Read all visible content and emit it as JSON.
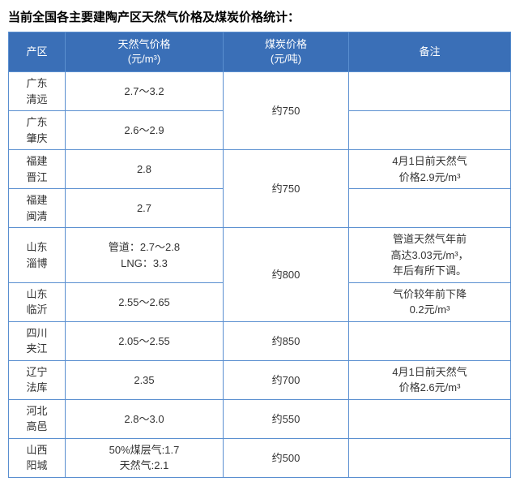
{
  "title": "当前全国各主要建陶产区天然气价格及煤炭价格统计：",
  "columns": {
    "region": "产区",
    "gas_l1": "天然气价格",
    "gas_l2": "(元/m³)",
    "coal_l1": "煤炭价格",
    "coal_l2": "(元/吨)",
    "note": "备注"
  },
  "header_bg": "#3a6fb7",
  "rows": {
    "r1_region_l1": "广东",
    "r1_region_l2": "清远",
    "r1_gas": "2.7～3.2",
    "r1_coal": "约750",
    "r1_note": "",
    "r2_region_l1": "广东",
    "r2_region_l2": "肇庆",
    "r2_gas": "2.6～2.9",
    "r2_note": "",
    "r3_region_l1": "福建",
    "r3_region_l2": "晋江",
    "r3_gas": "2.8",
    "r3_coal": "约750",
    "r3_note_l1": "4月1日前天然气",
    "r3_note_l2": "价格2.9元/m³",
    "r4_region_l1": "福建",
    "r4_region_l2": "闽清",
    "r4_gas": "2.7",
    "r4_note": "",
    "r5_region_l1": "山东",
    "r5_region_l2": "淄博",
    "r5_gas_l1": "管道：2.7～2.8",
    "r5_gas_l2": "LNG：3.3",
    "r5_coal": "约800",
    "r5_note_l1": "管道天然气年前",
    "r5_note_l2": "高达3.03元/m³，",
    "r5_note_l3": "年后有所下调。",
    "r6_region_l1": "山东",
    "r6_region_l2": "临沂",
    "r6_gas": "2.55～2.65",
    "r6_note_l1": "气价较年前下降",
    "r6_note_l2": "0.2元/m³",
    "r7_region_l1": "四川",
    "r7_region_l2": "夹江",
    "r7_gas": "2.05～2.55",
    "r7_coal": "约850",
    "r7_note": "",
    "r8_region_l1": "辽宁",
    "r8_region_l2": "法库",
    "r8_gas": "2.35",
    "r8_coal": "约700",
    "r8_note_l1": "4月1日前天然气",
    "r8_note_l2": "价格2.6元/m³",
    "r9_region_l1": "河北",
    "r9_region_l2": "高邑",
    "r9_gas": "2.8～3.0",
    "r9_coal": "约550",
    "r9_note": "",
    "r10_region_l1": "山西",
    "r10_region_l2": "阳城",
    "r10_gas_l1": "50%煤层气:1.7",
    "r10_gas_l2": "天然气:2.1",
    "r10_coal": "约500",
    "r10_note": ""
  }
}
